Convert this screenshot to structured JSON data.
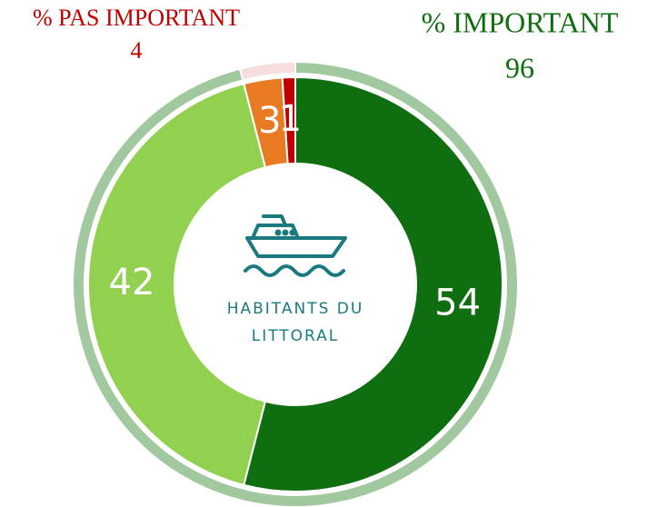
{
  "chart_data": {
    "type": "donut",
    "values": [
      54,
      42,
      3,
      1
    ],
    "colors": [
      "#0f6e10",
      "#92d050",
      "#e87a22",
      "#c00000"
    ],
    "center_label": [
      "HABITANTS DU",
      "LITTORAL"
    ],
    "outer": {
      "categories": [
        "% IMPORTANT",
        "% PAS IMPORTANT"
      ],
      "values": [
        96,
        4
      ],
      "colors": [
        "#a2c8a0",
        "#f7dede"
      ],
      "label_colors": [
        "#0f6e10",
        "#c00000"
      ]
    }
  }
}
